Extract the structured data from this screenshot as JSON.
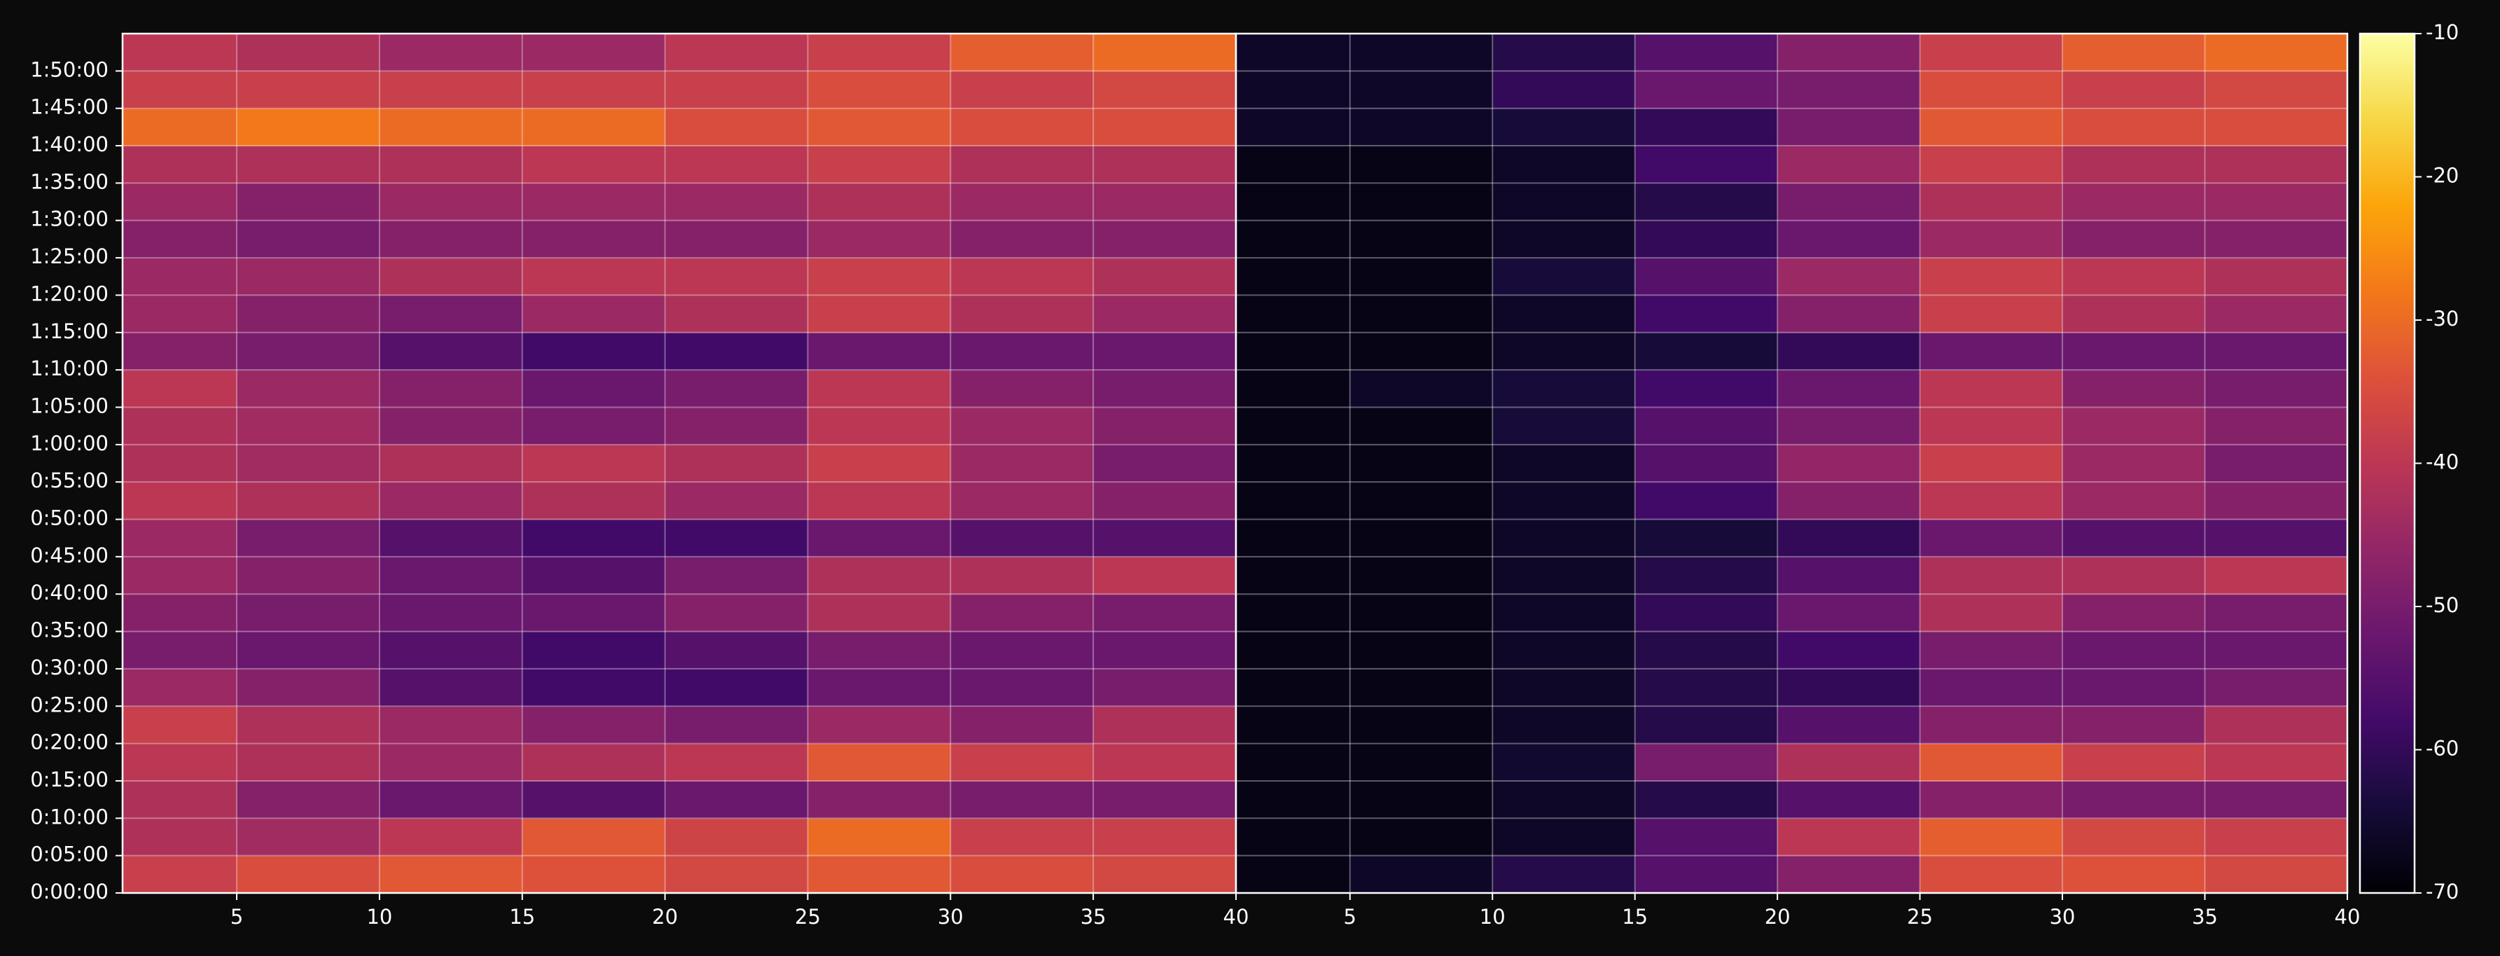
{
  "chart_data": {
    "type": "heatmap",
    "colormap": "inferno",
    "grid": true,
    "ybins": [
      0,
      5,
      10,
      15,
      20,
      25,
      30,
      35,
      40,
      45,
      50,
      55,
      60,
      65,
      70,
      75,
      80,
      85,
      90,
      95,
      100,
      105,
      110,
      115
    ],
    "ylim": [
      0,
      115
    ],
    "yticks": [
      {
        "value": 0,
        "label": "0:00:00"
      },
      {
        "value": 5,
        "label": "0:05:00"
      },
      {
        "value": 10,
        "label": "0:10:00"
      },
      {
        "value": 15,
        "label": "0:15:00"
      },
      {
        "value": 20,
        "label": "0:20:00"
      },
      {
        "value": 25,
        "label": "0:25:00"
      },
      {
        "value": 30,
        "label": "0:30:00"
      },
      {
        "value": 35,
        "label": "0:35:00"
      },
      {
        "value": 40,
        "label": "0:40:00"
      },
      {
        "value": 45,
        "label": "0:45:00"
      },
      {
        "value": 50,
        "label": "0:50:00"
      },
      {
        "value": 55,
        "label": "0:55:00"
      },
      {
        "value": 60,
        "label": "1:00:00"
      },
      {
        "value": 65,
        "label": "1:05:00"
      },
      {
        "value": 70,
        "label": "1:10:00"
      },
      {
        "value": 75,
        "label": "1:15:00"
      },
      {
        "value": 80,
        "label": "1:20:00"
      },
      {
        "value": 85,
        "label": "1:25:00"
      },
      {
        "value": 90,
        "label": "1:30:00"
      },
      {
        "value": 95,
        "label": "1:35:00"
      },
      {
        "value": 100,
        "label": "1:40:00"
      },
      {
        "value": 105,
        "label": "1:45:00"
      },
      {
        "value": 110,
        "label": "1:50:00"
      }
    ],
    "clim": [
      -70,
      -10
    ],
    "cticks": [
      -70,
      -60,
      -50,
      -40,
      -30,
      -20,
      -10
    ],
    "panels": [
      {
        "xlim": [
          1,
          40
        ],
        "xticks": [
          5,
          10,
          15,
          20,
          25,
          30,
          35,
          40
        ],
        "xbins": [
          1,
          5,
          10,
          15,
          20,
          25,
          30,
          35,
          40
        ],
        "values": [
          [
            -38,
            -35,
            -33,
            -34,
            -36,
            -33,
            -35,
            -36
          ],
          [
            -42,
            -44,
            -40,
            -33,
            -37,
            -30,
            -38,
            -38
          ],
          [
            -42,
            -48,
            -52,
            -55,
            -52,
            -48,
            -50,
            -50
          ],
          [
            -40,
            -42,
            -45,
            -42,
            -40,
            -33,
            -38,
            -40
          ],
          [
            -38,
            -42,
            -45,
            -48,
            -50,
            -45,
            -48,
            -42
          ],
          [
            -45,
            -48,
            -55,
            -58,
            -58,
            -52,
            -52,
            -50
          ],
          [
            -50,
            -52,
            -55,
            -58,
            -55,
            -50,
            -52,
            -52
          ],
          [
            -48,
            -50,
            -52,
            -52,
            -48,
            -42,
            -48,
            -50
          ],
          [
            -45,
            -48,
            -52,
            -55,
            -50,
            -42,
            -42,
            -40
          ],
          [
            -45,
            -50,
            -55,
            -58,
            -58,
            -52,
            -55,
            -55
          ],
          [
            -40,
            -42,
            -45,
            -42,
            -45,
            -40,
            -45,
            -48
          ],
          [
            -42,
            -44,
            -42,
            -40,
            -42,
            -38,
            -45,
            -50
          ],
          [
            -42,
            -44,
            -48,
            -50,
            -48,
            -40,
            -45,
            -48
          ],
          [
            -40,
            -45,
            -48,
            -52,
            -50,
            -40,
            -48,
            -50
          ],
          [
            -48,
            -50,
            -55,
            -58,
            -58,
            -52,
            -52,
            -52
          ],
          [
            -45,
            -48,
            -50,
            -45,
            -42,
            -38,
            -42,
            -45
          ],
          [
            -45,
            -45,
            -42,
            -40,
            -40,
            -38,
            -40,
            -42
          ],
          [
            -48,
            -50,
            -48,
            -48,
            -48,
            -45,
            -48,
            -48
          ],
          [
            -45,
            -48,
            -45,
            -45,
            -45,
            -42,
            -45,
            -45
          ],
          [
            -42,
            -42,
            -42,
            -40,
            -40,
            -38,
            -42,
            -42
          ],
          [
            -30,
            -28,
            -30,
            -30,
            -35,
            -33,
            -35,
            -35
          ],
          [
            -38,
            -38,
            -38,
            -38,
            -38,
            -35,
            -38,
            -36
          ],
          [
            -40,
            -42,
            -45,
            -45,
            -40,
            -38,
            -32,
            -30
          ]
        ]
      },
      {
        "xlim": [
          1,
          40
        ],
        "xticks": [
          5,
          10,
          15,
          20,
          25,
          30,
          35,
          40
        ],
        "xbins": [
          1,
          5,
          10,
          15,
          20,
          25,
          30,
          35,
          40
        ],
        "values": [
          [
            -68,
            -66,
            -62,
            -55,
            -48,
            -35,
            -34,
            -36
          ],
          [
            -68,
            -68,
            -66,
            -55,
            -40,
            -32,
            -36,
            -38
          ],
          [
            -68,
            -68,
            -66,
            -62,
            -55,
            -48,
            -50,
            -50
          ],
          [
            -68,
            -68,
            -65,
            -50,
            -42,
            -33,
            -38,
            -40
          ],
          [
            -68,
            -68,
            -66,
            -62,
            -55,
            -48,
            -48,
            -42
          ],
          [
            -68,
            -68,
            -66,
            -62,
            -60,
            -52,
            -52,
            -50
          ],
          [
            -68,
            -68,
            -66,
            -62,
            -58,
            -50,
            -52,
            -52
          ],
          [
            -68,
            -68,
            -66,
            -60,
            -52,
            -42,
            -48,
            -50
          ],
          [
            -68,
            -68,
            -66,
            -62,
            -55,
            -42,
            -42,
            -40
          ],
          [
            -68,
            -68,
            -66,
            -64,
            -60,
            -52,
            -55,
            -55
          ],
          [
            -68,
            -68,
            -66,
            -58,
            -48,
            -40,
            -45,
            -48
          ],
          [
            -68,
            -68,
            -66,
            -55,
            -46,
            -38,
            -45,
            -50
          ],
          [
            -68,
            -68,
            -64,
            -55,
            -50,
            -40,
            -45,
            -48
          ],
          [
            -68,
            -66,
            -64,
            -58,
            -52,
            -40,
            -48,
            -50
          ],
          [
            -68,
            -68,
            -66,
            -64,
            -60,
            -52,
            -52,
            -52
          ],
          [
            -68,
            -68,
            -66,
            -58,
            -48,
            -38,
            -42,
            -45
          ],
          [
            -68,
            -68,
            -64,
            -55,
            -45,
            -38,
            -40,
            -42
          ],
          [
            -68,
            -68,
            -66,
            -60,
            -52,
            -45,
            -48,
            -48
          ],
          [
            -68,
            -68,
            -66,
            -62,
            -50,
            -42,
            -45,
            -45
          ],
          [
            -68,
            -68,
            -66,
            -58,
            -45,
            -38,
            -42,
            -42
          ],
          [
            -66,
            -66,
            -64,
            -60,
            -50,
            -33,
            -35,
            -35
          ],
          [
            -66,
            -66,
            -60,
            -52,
            -50,
            -35,
            -38,
            -36
          ],
          [
            -66,
            -66,
            -62,
            -55,
            -48,
            -38,
            -32,
            -30
          ]
        ]
      }
    ]
  }
}
